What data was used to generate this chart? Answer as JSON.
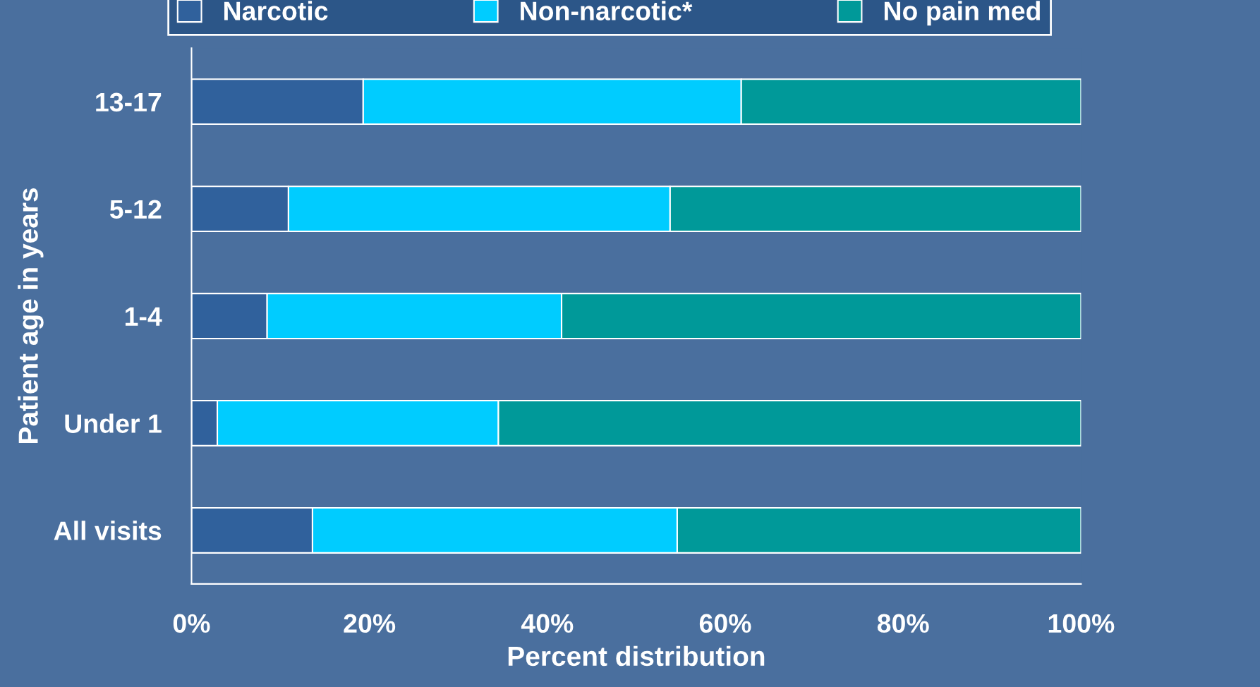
{
  "chart_data": {
    "type": "bar",
    "orientation": "horizontal",
    "stacked": true,
    "categories": [
      "13-17",
      "5-12",
      "1-4",
      "Under 1",
      "All visits"
    ],
    "series": [
      {
        "name": "Narcotic",
        "color": "#30619c",
        "values": [
          19.3,
          10.9,
          8.5,
          2.9,
          13.6
        ]
      },
      {
        "name": "Non-narcotic*",
        "color": "#00ccff",
        "values": [
          42.5,
          42.9,
          33.1,
          31.6,
          41.0
        ]
      },
      {
        "name": "No pain med",
        "color": "#009999",
        "values": [
          38.2,
          46.2,
          58.4,
          65.5,
          45.4
        ]
      }
    ],
    "xlim": [
      0,
      100
    ],
    "xticks": [
      {
        "value": 0,
        "label": "0%"
      },
      {
        "value": 20,
        "label": "20%"
      },
      {
        "value": 40,
        "label": "40%"
      },
      {
        "value": 60,
        "label": "60%"
      },
      {
        "value": 80,
        "label": "80%"
      },
      {
        "value": 100,
        "label": "100%"
      }
    ],
    "xlabel": "Percent distribution",
    "ylabel": "Patient age in years",
    "legend": "top",
    "grid": false
  }
}
